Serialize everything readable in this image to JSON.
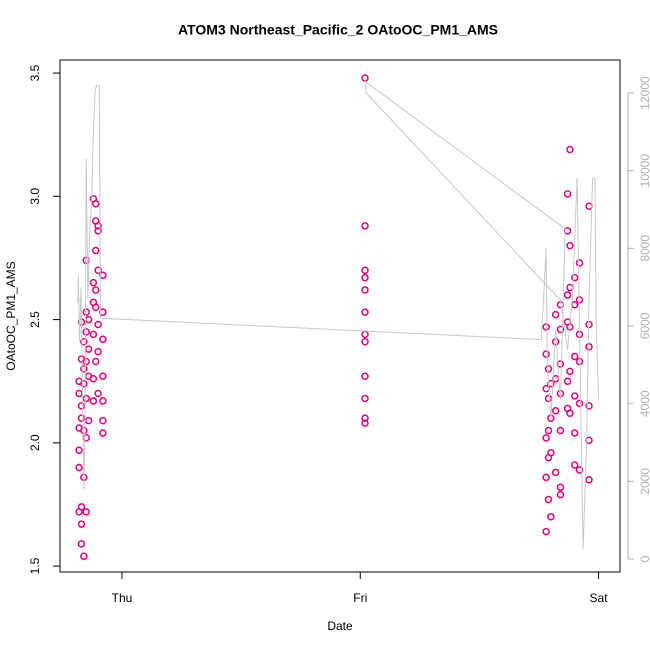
{
  "chart_data": {
    "type": "scatter",
    "title": "ATOM3 Northeast_Pacific_2 OAtoOC_PM1_AMS",
    "x_label": "Date",
    "y_label": "OAtoOC_PM1_AMS",
    "xlim": [
      -0.26,
      2.09
    ],
    "xticks": [
      {
        "value": 0,
        "label": "Thu"
      },
      {
        "value": 1,
        "label": "Fri"
      },
      {
        "value": 2,
        "label": "Sat"
      }
    ],
    "ylim": [
      1.476,
      3.553
    ],
    "yticks": [
      1.5,
      {
        "value": 2,
        "label": "2.0"
      },
      2.5,
      {
        "value": 3,
        "label": "3.0"
      },
      3.5
    ],
    "y2lim": [
      -335,
      12850
    ],
    "y2ticks": [
      0,
      2000,
      4000,
      6000,
      8000,
      10000,
      12000
    ],
    "y2_color": "#b0b0b0",
    "series": [
      {
        "type": "scatter",
        "color": "#e6007e",
        "x": [
          -0.18,
          -0.18,
          -0.18,
          -0.18,
          -0.18,
          -0.18,
          -0.17,
          -0.17,
          -0.17,
          -0.17,
          -0.17,
          -0.17,
          -0.17,
          -0.16,
          -0.16,
          -0.16,
          -0.16,
          -0.16,
          -0.16,
          -0.15,
          -0.15,
          -0.15,
          -0.15,
          -0.15,
          -0.15,
          -0.15,
          -0.14,
          -0.14,
          -0.14,
          -0.14,
          -0.12,
          -0.12,
          -0.12,
          -0.12,
          -0.12,
          -0.12,
          -0.11,
          -0.11,
          -0.11,
          -0.11,
          -0.11,
          -0.11,
          -0.1,
          -0.1,
          -0.1,
          -0.1,
          -0.1,
          -0.1,
          -0.08,
          -0.08,
          -0.08,
          -0.08,
          -0.08,
          -0.08,
          -0.08,
          1.02,
          1.02,
          1.02,
          1.02,
          1.02,
          1.02,
          1.02,
          1.02,
          1.02,
          1.02,
          1.02,
          1.02,
          1.78,
          1.78,
          1.78,
          1.78,
          1.78,
          1.78,
          1.79,
          1.79,
          1.79,
          1.79,
          1.79,
          1.8,
          1.8,
          1.8,
          1.8,
          1.82,
          1.82,
          1.82,
          1.82,
          1.82,
          1.84,
          1.84,
          1.84,
          1.84,
          1.84,
          1.84,
          1.84,
          1.87,
          1.87,
          1.87,
          1.87,
          1.87,
          1.87,
          1.88,
          1.88,
          1.88,
          1.88,
          1.88,
          1.88,
          1.9,
          1.9,
          1.9,
          1.9,
          1.9,
          1.9,
          1.92,
          1.92,
          1.92,
          1.92,
          1.92,
          1.92,
          1.96,
          1.96,
          1.96,
          1.96,
          1.96,
          1.96
        ],
        "values": [
          1.72,
          1.97,
          2.06,
          2.2,
          2.25,
          1.9,
          1.59,
          1.67,
          1.74,
          2.49,
          2.34,
          2.15,
          2.1,
          1.54,
          1.86,
          2.05,
          2.3,
          2.41,
          2.24,
          2.02,
          2.18,
          2.33,
          2.45,
          2.53,
          2.74,
          1.72,
          2.09,
          2.27,
          2.38,
          2.5,
          2.17,
          2.26,
          2.44,
          2.57,
          2.65,
          2.99,
          2.33,
          2.55,
          2.62,
          2.78,
          2.9,
          2.97,
          2.2,
          2.37,
          2.48,
          2.7,
          2.86,
          2.88,
          2.04,
          2.09,
          2.17,
          2.27,
          2.42,
          2.53,
          2.68,
          3.48,
          2.88,
          2.7,
          2.67,
          2.62,
          2.53,
          2.44,
          2.41,
          2.27,
          2.18,
          2.1,
          2.08,
          1.64,
          1.86,
          2.02,
          2.22,
          2.36,
          2.47,
          1.77,
          1.94,
          2.05,
          2.18,
          2.3,
          1.7,
          1.96,
          2.1,
          2.24,
          1.88,
          2.13,
          2.26,
          2.41,
          2.52,
          1.79,
          1.82,
          2.05,
          2.2,
          2.32,
          2.46,
          2.56,
          2.14,
          2.25,
          2.49,
          2.6,
          2.86,
          3.01,
          2.29,
          2.63,
          2.8,
          3.19,
          2.47,
          2.12,
          1.91,
          2.04,
          2.19,
          2.35,
          2.56,
          2.67,
          1.89,
          2.16,
          2.33,
          2.44,
          2.58,
          2.73,
          1.85,
          2.01,
          2.39,
          2.48,
          2.96,
          2.15
        ]
      },
      {
        "type": "line",
        "axis": "y2",
        "color": "#c8c8c8",
        "x": [
          -0.185,
          -0.183,
          -0.178,
          -0.172,
          -0.165,
          -0.16,
          -0.155,
          -0.15,
          -0.143,
          -0.135,
          -0.127,
          -0.12,
          -0.112,
          -0.105,
          -0.095,
          -0.09,
          1.76,
          1.78,
          1.785,
          1.8,
          1.82,
          1.84,
          1.86,
          1.02,
          1.025,
          1.84,
          1.87,
          1.89,
          1.91,
          1.92,
          1.935,
          1.95,
          1.96,
          1.975,
          1.985,
          1.99,
          2.0
        ],
        "values": [
          6600,
          7300,
          5600,
          7000,
          4100,
          1800,
          3500,
          10300,
          6700,
          8500,
          9200,
          11000,
          12100,
          12200,
          12200,
          6200,
          5650,
          8000,
          5000,
          3600,
          5900,
          4100,
          8500,
          12300,
          12000,
          6670,
          5400,
          6700,
          9800,
          6000,
          250,
          3000,
          6700,
          9800,
          9800,
          6200,
          4100
        ]
      }
    ]
  }
}
